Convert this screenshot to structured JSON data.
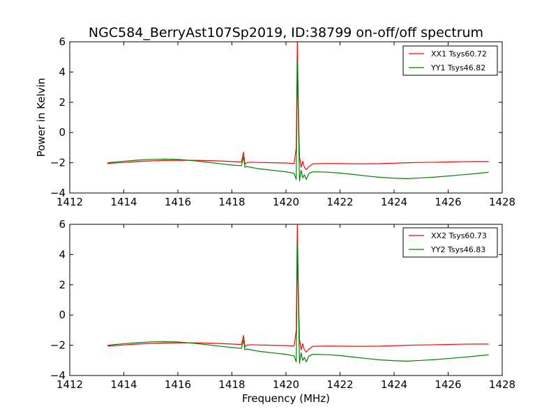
{
  "figure": {
    "title": "NGC584_BerryAst107Sp2019, ID:38799 on-off/off spectrum"
  },
  "chart_data": [
    {
      "type": "line",
      "title": "NGC584_BerryAst107Sp2019, ID:38799 on-off/off spectrum",
      "xlabel": "",
      "ylabel": "Power in Kelvin",
      "xlim": [
        1412,
        1428
      ],
      "ylim": [
        -4,
        6
      ],
      "xticks": [
        1412,
        1414,
        1416,
        1418,
        1420,
        1422,
        1424,
        1426,
        1428
      ],
      "yticks": [
        -4,
        -2,
        0,
        2,
        4,
        6
      ],
      "grid": false,
      "legend_position": "top-right",
      "series": [
        {
          "name": "XX1 Tsys60.72",
          "color": "#ff0000",
          "x": [
            1413.4,
            1414.0,
            1414.5,
            1415.0,
            1415.5,
            1416.0,
            1416.5,
            1417.0,
            1417.5,
            1418.0,
            1418.35,
            1418.43,
            1418.48,
            1418.55,
            1418.7,
            1419.0,
            1419.5,
            1420.0,
            1420.3,
            1420.38,
            1420.42,
            1420.46,
            1420.5,
            1420.56,
            1420.62,
            1420.68,
            1420.75,
            1420.85,
            1421.0,
            1421.5,
            1422.0,
            1422.5,
            1423.0,
            1423.5,
            1424.0,
            1424.5,
            1425.0,
            1425.5,
            1426.0,
            1426.5,
            1427.0,
            1427.5
          ],
          "y": [
            -2.05,
            -1.98,
            -1.92,
            -1.88,
            -1.85,
            -1.84,
            -1.84,
            -1.85,
            -1.88,
            -1.92,
            -1.95,
            -1.3,
            -2.1,
            -1.98,
            -1.97,
            -1.98,
            -2.0,
            -2.02,
            -2.05,
            -1.0,
            6.0,
            1.5,
            -1.6,
            -2.3,
            -1.9,
            -2.3,
            -2.45,
            -2.25,
            -2.07,
            -2.05,
            -2.06,
            -2.07,
            -2.07,
            -2.06,
            -2.03,
            -2.0,
            -1.98,
            -1.97,
            -1.95,
            -1.93,
            -1.92,
            -1.92
          ]
        },
        {
          "name": "YY1 Tsys46.82",
          "color": "#008000",
          "x": [
            1413.4,
            1414.0,
            1414.5,
            1415.0,
            1415.5,
            1416.0,
            1416.5,
            1417.0,
            1417.5,
            1418.0,
            1418.35,
            1418.43,
            1418.48,
            1418.55,
            1418.7,
            1419.0,
            1419.5,
            1420.0,
            1420.3,
            1420.38,
            1420.42,
            1420.46,
            1420.5,
            1420.56,
            1420.62,
            1420.68,
            1420.75,
            1420.85,
            1421.0,
            1421.5,
            1422.0,
            1422.5,
            1423.0,
            1423.5,
            1424.0,
            1424.5,
            1425.0,
            1425.5,
            1426.0,
            1426.5,
            1427.0,
            1427.5
          ],
          "y": [
            -2.0,
            -1.9,
            -1.83,
            -1.78,
            -1.76,
            -1.78,
            -1.85,
            -1.95,
            -2.05,
            -2.15,
            -2.2,
            -1.6,
            -2.3,
            -2.25,
            -2.3,
            -2.4,
            -2.5,
            -2.6,
            -2.7,
            -3.1,
            4.7,
            0.8,
            -3.2,
            -2.5,
            -3.0,
            -2.8,
            -3.1,
            -2.7,
            -2.6,
            -2.62,
            -2.68,
            -2.78,
            -2.88,
            -2.97,
            -3.02,
            -3.05,
            -3.0,
            -2.95,
            -2.88,
            -2.8,
            -2.72,
            -2.63
          ]
        }
      ]
    },
    {
      "type": "line",
      "title": "",
      "xlabel": "Frequency (MHz)",
      "ylabel": "",
      "xlim": [
        1412,
        1428
      ],
      "ylim": [
        -4,
        6
      ],
      "xticks": [
        1412,
        1414,
        1416,
        1418,
        1420,
        1422,
        1424,
        1426,
        1428
      ],
      "yticks": [
        -4,
        -2,
        0,
        2,
        4,
        6
      ],
      "grid": false,
      "legend_position": "top-right",
      "series": [
        {
          "name": "XX2 Tsys60.73",
          "color": "#ff0000",
          "x": [
            1413.4,
            1414.0,
            1414.5,
            1415.0,
            1415.5,
            1416.0,
            1416.5,
            1417.0,
            1417.5,
            1418.0,
            1418.35,
            1418.43,
            1418.48,
            1418.55,
            1418.7,
            1419.0,
            1419.5,
            1420.0,
            1420.3,
            1420.38,
            1420.42,
            1420.46,
            1420.5,
            1420.56,
            1420.62,
            1420.68,
            1420.75,
            1420.85,
            1421.0,
            1421.5,
            1422.0,
            1422.5,
            1423.0,
            1423.5,
            1424.0,
            1424.5,
            1425.0,
            1425.5,
            1426.0,
            1426.5,
            1427.0,
            1427.5
          ],
          "y": [
            -2.05,
            -1.98,
            -1.92,
            -1.88,
            -1.85,
            -1.84,
            -1.84,
            -1.85,
            -1.88,
            -1.92,
            -1.95,
            -1.35,
            -2.1,
            -1.98,
            -1.97,
            -1.98,
            -2.0,
            -2.02,
            -2.05,
            -1.0,
            6.0,
            1.5,
            -1.6,
            -2.3,
            -1.9,
            -2.3,
            -2.45,
            -2.25,
            -2.07,
            -2.05,
            -2.06,
            -2.07,
            -2.07,
            -2.06,
            -2.03,
            -2.0,
            -1.98,
            -1.97,
            -1.95,
            -1.93,
            -1.92,
            -1.92
          ]
        },
        {
          "name": "YY2 Tsys46.83",
          "color": "#008000",
          "x": [
            1413.4,
            1414.0,
            1414.5,
            1415.0,
            1415.5,
            1416.0,
            1416.5,
            1417.0,
            1417.5,
            1418.0,
            1418.35,
            1418.43,
            1418.48,
            1418.55,
            1418.7,
            1419.0,
            1419.5,
            1420.0,
            1420.3,
            1420.38,
            1420.42,
            1420.46,
            1420.5,
            1420.56,
            1420.62,
            1420.68,
            1420.75,
            1420.85,
            1421.0,
            1421.5,
            1422.0,
            1422.5,
            1423.0,
            1423.5,
            1424.0,
            1424.5,
            1425.0,
            1425.5,
            1426.0,
            1426.5,
            1427.0,
            1427.5
          ],
          "y": [
            -2.0,
            -1.9,
            -1.83,
            -1.78,
            -1.76,
            -1.78,
            -1.85,
            -1.95,
            -2.05,
            -2.15,
            -2.2,
            -1.65,
            -2.3,
            -2.25,
            -2.3,
            -2.4,
            -2.5,
            -2.6,
            -2.7,
            -3.1,
            4.7,
            0.8,
            -3.2,
            -2.5,
            -3.0,
            -2.8,
            -3.1,
            -2.7,
            -2.6,
            -2.62,
            -2.68,
            -2.78,
            -2.88,
            -2.97,
            -3.02,
            -3.05,
            -3.0,
            -2.95,
            -2.88,
            -2.8,
            -2.72,
            -2.63
          ]
        }
      ]
    }
  ]
}
